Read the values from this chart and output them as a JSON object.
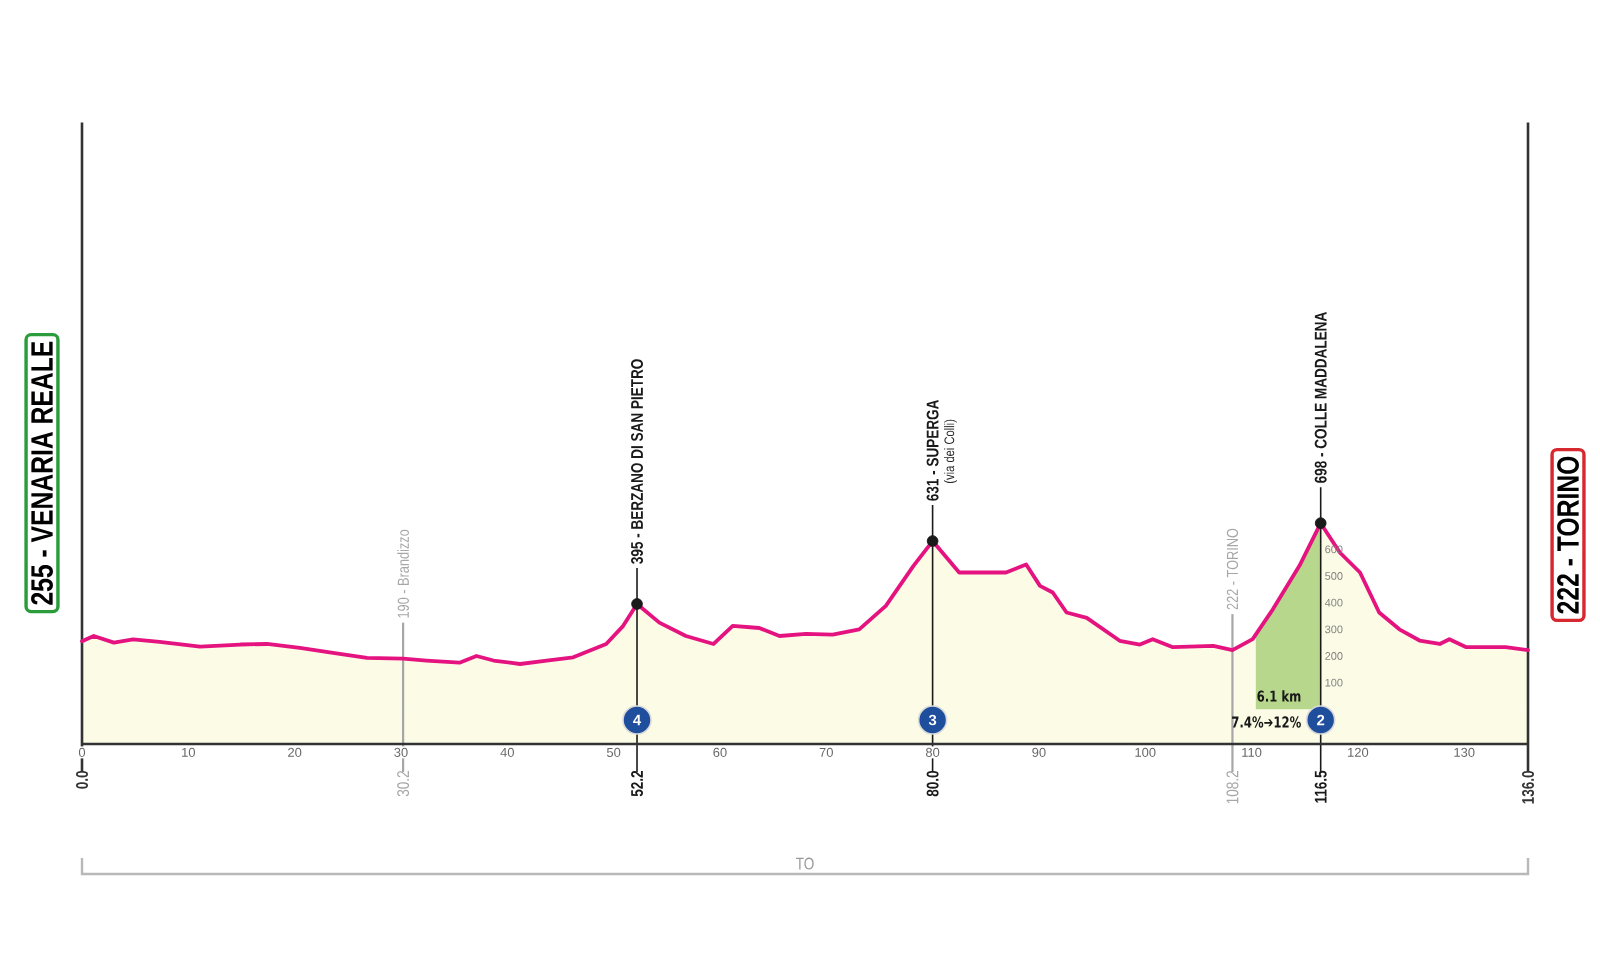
{
  "chart_data": {
    "type": "area",
    "xlim": [
      0,
      136
    ],
    "xticks": [
      0,
      10,
      20,
      30,
      40,
      50,
      60,
      70,
      80,
      90,
      100,
      110,
      120,
      130
    ],
    "x2lim": [
      0,
      136
    ],
    "x2ticks": [
      {
        "value": 0,
        "label": "0.0"
      },
      30.2,
      52.2,
      {
        "value": 80,
        "label": "80.0"
      },
      108.2,
      116.5,
      {
        "value": 136,
        "label": "136.0"
      }
    ],
    "ylim": [
      -130,
      2200
    ],
    "yticks": [
      100,
      200,
      300,
      400,
      500,
      600
    ],
    "series": [
      {
        "color": "#e5137f",
        "x": [
          0,
          1.1,
          3.0,
          4.8,
          7.3,
          11.1,
          14.9,
          17.4,
          20.5,
          23.6,
          26.8,
          30.2,
          32.4,
          35.5,
          37.1,
          38.7,
          41.2,
          43.7,
          46.2,
          49.3,
          50.9,
          52.2,
          54.3,
          56.8,
          59.4,
          61.2,
          63.7,
          65.6,
          68.1,
          70.6,
          73.1,
          75.6,
          78.2,
          80.0,
          82.5,
          85.0,
          86.9,
          88.8,
          90.1,
          91.3,
          92.6,
          94.5,
          97.6,
          99.5,
          100.7,
          102.6,
          106.4,
          108.2,
          110.1,
          112.0,
          114.5,
          116.5,
          118.3,
          120.2,
          122.0,
          123.9,
          125.8,
          127.7,
          128.6,
          130.2,
          133.9,
          136.0
        ],
        "values": [
          255,
          275,
          250,
          262,
          253,
          235,
          243,
          245,
          230,
          212,
          193,
          190,
          183,
          175,
          200,
          183,
          170,
          183,
          195,
          245,
          313,
          395,
          325,
          275,
          245,
          313,
          305,
          275,
          283,
          280,
          300,
          388,
          538,
          631,
          513,
          513,
          513,
          543,
          463,
          438,
          363,
          343,
          257,
          243,
          263,
          233,
          238,
          222,
          263,
          375,
          538,
          698,
          588,
          513,
          363,
          300,
          258,
          245,
          263,
          233,
          233,
          222
        ]
      },
      {
        "type": "area",
        "color": "#b7d88c",
        "x": [
          110.4,
          112.0,
          114.5,
          116.5
        ],
        "values": [
          281,
          375,
          538,
          698
        ]
      },
      {
        "type": "scatter",
        "color": "#1a1a1a",
        "marker": "circle",
        "x": [
          52.2,
          80.0,
          116.5
        ],
        "values": [
          395,
          631,
          698
        ]
      }
    ],
    "bands": [
      {
        "axis": "y",
        "from": -130,
        "to": 0,
        "color": "#fbfbe6"
      }
    ],
    "ref_lines": [
      {
        "axis": "x",
        "value": 0.0,
        "label": "255 - VENARIA REALE",
        "color": "#333333"
      },
      {
        "axis": "x",
        "value": 30.2,
        "label": "190 - Brandizzo",
        "color": "#a6a6a6"
      },
      {
        "axis": "x",
        "value": 52.2,
        "label": "395 - BERZANO DI SAN PIETRO",
        "color": "#1a1a1a"
      },
      {
        "axis": "x",
        "value": 80.0,
        "label": "631 - SUPERGA",
        "color": "#1a1a1a"
      },
      {
        "axis": "x",
        "value": 108.2,
        "label": "222 - TORINO",
        "color": "#a6a6a6"
      },
      {
        "axis": "x",
        "value": 116.5,
        "label": "698 - COLLE MADDALENA",
        "color": "#1a1a1a"
      },
      {
        "axis": "x",
        "value": 136.0,
        "label": "222 - TORINO",
        "color": "#333333"
      }
    ],
    "annotations": [
      "(via dei Colli)",
      {
        "text": "4",
        "x": 52.2,
        "y": -40
      },
      {
        "text": "3",
        "x": 80.0,
        "y": -40
      },
      {
        "text": "2",
        "x": 116.5,
        "y": -40
      },
      "6.1 km",
      "7.4%➔12%",
      "TO"
    ]
  }
}
